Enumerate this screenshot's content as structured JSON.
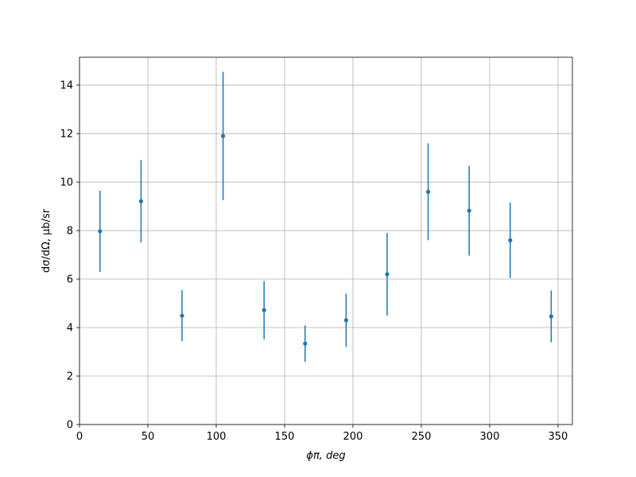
{
  "chart_data": {
    "type": "errorbar",
    "xlabel": "ϕπ, deg",
    "ylabel": "dσ/dΩ, μb/sr",
    "x": [
      15,
      45,
      75,
      105,
      135,
      165,
      195,
      225,
      255,
      285,
      315,
      345
    ],
    "values": [
      7.97,
      9.21,
      4.49,
      11.9,
      4.72,
      3.34,
      4.3,
      6.2,
      9.6,
      8.82,
      7.6,
      4.46
    ],
    "errors": [
      1.67,
      1.7,
      1.05,
      2.65,
      1.2,
      0.75,
      1.1,
      1.7,
      2.0,
      1.85,
      1.55,
      1.07
    ],
    "color": "#1f77b4",
    "xlim": [
      0,
      360.5
    ],
    "xticks": [
      0,
      50,
      100,
      150,
      200,
      250,
      300,
      350
    ],
    "ylim": [
      0,
      15.15
    ],
    "yticks": [
      0,
      2,
      4,
      6,
      8,
      10,
      12,
      14
    ],
    "grid": true
  }
}
